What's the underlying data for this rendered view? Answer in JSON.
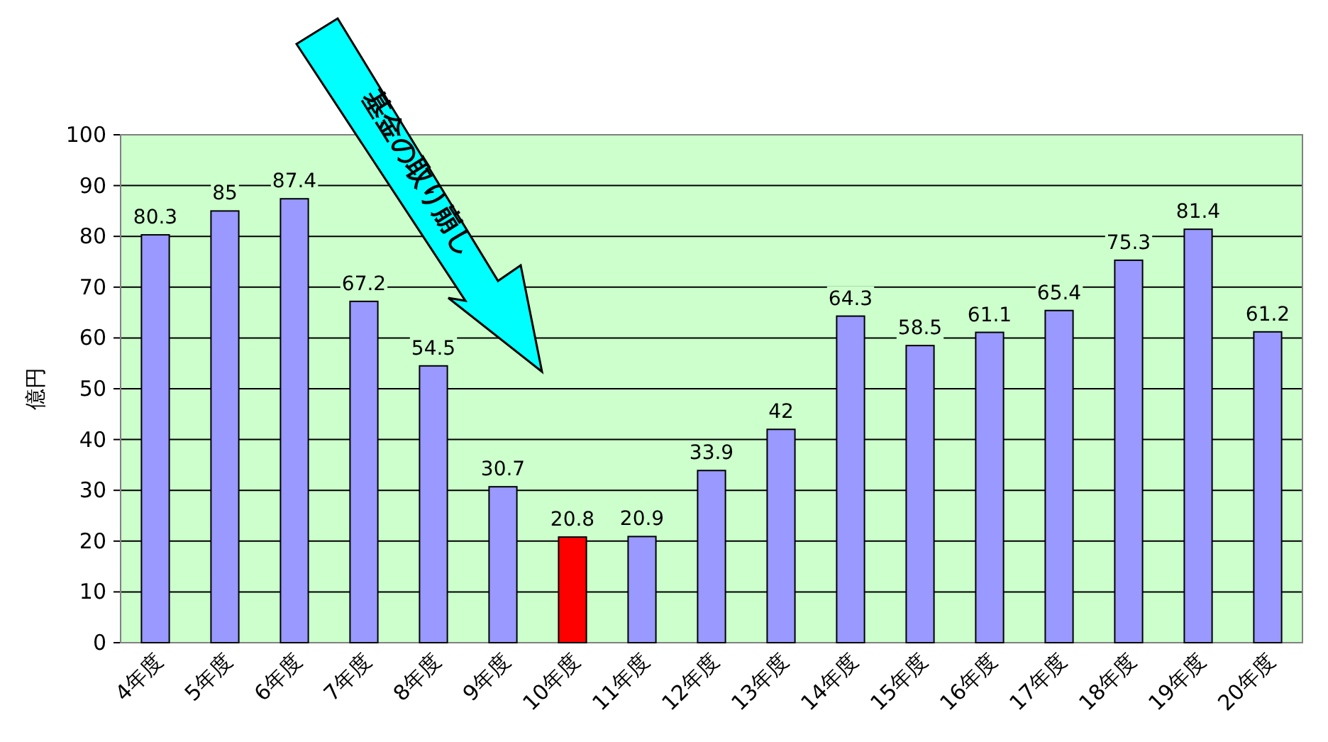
{
  "chart_data": {
    "type": "bar",
    "ylabel": "億円",
    "categories": [
      "4年度",
      "5年度",
      "6年度",
      "7年度",
      "8年度",
      "9年度",
      "10年度",
      "11年度",
      "12年度",
      "13年度",
      "14年度",
      "15年度",
      "16年度",
      "17年度",
      "18年度",
      "19年度",
      "20年度"
    ],
    "values": [
      80.3,
      85,
      87.4,
      67.2,
      54.5,
      30.7,
      20.8,
      20.9,
      33.9,
      42,
      64.3,
      58.5,
      61.1,
      65.4,
      75.3,
      81.4,
      61.2
    ],
    "colors": [
      "#9999ff",
      "#9999ff",
      "#9999ff",
      "#9999ff",
      "#9999ff",
      "#9999ff",
      "#ff0000",
      "#9999ff",
      "#9999ff",
      "#9999ff",
      "#9999ff",
      "#9999ff",
      "#9999ff",
      "#9999ff",
      "#9999ff",
      "#9999ff",
      "#9999ff"
    ],
    "data_labels": true,
    "ylim": [
      0,
      100
    ],
    "yticks": [
      0,
      10,
      20,
      30,
      40,
      50,
      60,
      70,
      80,
      90,
      100
    ],
    "grid": "y",
    "annotations": [
      "基金の取り崩し"
    ]
  }
}
